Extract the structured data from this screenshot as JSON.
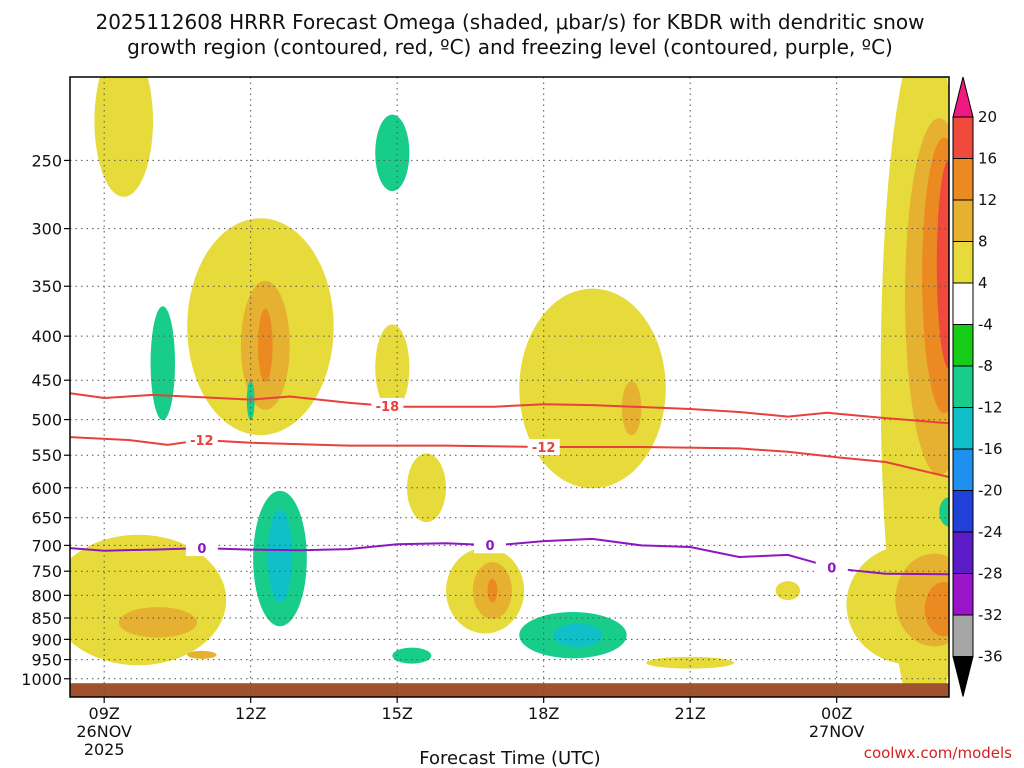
{
  "title_line1": "2025112608 HRRR Forecast Omega (shaded, μbar/s) for KBDR with dendritic snow",
  "title_line2": "growth region (contoured, red, ºC) and freezing level (contoured, purple, ºC)",
  "credit": "coolwx.com/models",
  "colors": {
    "red_contour": "#e8413a",
    "purple_contour": "#8e17c0",
    "ground": "#a0522d",
    "grid": "#555555"
  },
  "chart_data": {
    "type": "heatmap",
    "title": "2025112608 HRRR Forecast Omega (shaded, μbar/s) for KBDR with dendritic snow growth region (contoured, red, ºC) and freezing level (contoured, purple, ºC)",
    "xlabel": "Forecast Time (UTC)",
    "ylabel": "",
    "xlim_hours_from_09Z": [
      -0.7,
      17.3
    ],
    "ylim_hPa": [
      1050,
      200
    ],
    "yticks": [
      {
        "value": 250,
        "label": "250"
      },
      {
        "value": 300,
        "label": "300"
      },
      {
        "value": 350,
        "label": "350"
      },
      {
        "value": 400,
        "label": "400"
      },
      {
        "value": 450,
        "label": "450"
      },
      {
        "value": 500,
        "label": "500"
      },
      {
        "value": 550,
        "label": "550"
      },
      {
        "value": 600,
        "label": "600"
      },
      {
        "value": 650,
        "label": "650"
      },
      {
        "value": 700,
        "label": "700"
      },
      {
        "value": 750,
        "label": "750"
      },
      {
        "value": 800,
        "label": "800"
      },
      {
        "value": 850,
        "label": "850"
      },
      {
        "value": 900,
        "label": "900"
      },
      {
        "value": 950,
        "label": "950"
      },
      {
        "value": 1000,
        "label": "1000"
      }
    ],
    "xticks": [
      {
        "hour": 0,
        "label": "09Z",
        "sub1": "26NOV",
        "sub2": "2025"
      },
      {
        "hour": 3,
        "label": "12Z",
        "sub1": "",
        "sub2": ""
      },
      {
        "hour": 6,
        "label": "15Z",
        "sub1": "",
        "sub2": ""
      },
      {
        "hour": 9,
        "label": "18Z",
        "sub1": "",
        "sub2": ""
      },
      {
        "hour": 12,
        "label": "21Z",
        "sub1": "",
        "sub2": ""
      },
      {
        "hour": 15,
        "label": "00Z",
        "sub1": "27NOV",
        "sub2": ""
      }
    ],
    "colorbar": {
      "levels": [
        -36,
        -32,
        -28,
        -24,
        -20,
        -16,
        -12,
        -8,
        -4,
        4,
        8,
        12,
        16,
        20
      ],
      "bins": [
        {
          "color": "#a5a5a5"
        },
        {
          "color": "#9a14c8"
        },
        {
          "color": "#5b1cc8"
        },
        {
          "color": "#2040d8"
        },
        {
          "color": "#1f8ff0"
        },
        {
          "color": "#10c0c8"
        },
        {
          "color": "#18cc8a"
        },
        {
          "color": "#16cc16"
        },
        {
          "color": "#ffffff"
        },
        {
          "color": "#e6db3a"
        },
        {
          "color": "#e6b030"
        },
        {
          "color": "#ec8a22"
        },
        {
          "color": "#f04a3c"
        }
      ],
      "low_extend_color": "#000000",
      "high_extend_color": "#f0197f"
    },
    "omega_regions": [
      {
        "name": "yellow-upper-left",
        "level": 4,
        "hour": 0.4,
        "p": 225,
        "rh": 0.6,
        "rp": 45
      },
      {
        "name": "yellow-12z-350-500",
        "level": 4,
        "hour": 3.2,
        "p": 390,
        "rh": 1.5,
        "rp": 110
      },
      {
        "name": "orange-13z-400",
        "level": 8,
        "hour": 3.3,
        "p": 410,
        "rh": 0.5,
        "rp": 70
      },
      {
        "name": "darkorange-13z-400",
        "level": 12,
        "hour": 3.3,
        "p": 410,
        "rh": 0.15,
        "rp": 40
      },
      {
        "name": "green-10z-430",
        "level": -8,
        "hour": 1.2,
        "p": 430,
        "rh": 0.25,
        "rp": 65
      },
      {
        "name": "green-12z-480",
        "level": -8,
        "hour": 3.0,
        "p": 475,
        "rh": 0.08,
        "rp": 25
      },
      {
        "name": "green-15z-250",
        "level": -8,
        "hour": 5.9,
        "p": 245,
        "rh": 0.35,
        "rp": 25
      },
      {
        "name": "yellow-15z-440",
        "level": 4,
        "hour": 5.9,
        "p": 435,
        "rh": 0.35,
        "rp": 50
      },
      {
        "name": "yellow-16z-600",
        "level": 4,
        "hour": 6.6,
        "p": 600,
        "rh": 0.4,
        "rp": 55
      },
      {
        "name": "yellow-19z-450",
        "level": 4,
        "hour": 10.0,
        "p": 460,
        "rh": 1.5,
        "rp": 120
      },
      {
        "name": "orange-20z-480",
        "level": 8,
        "hour": 10.8,
        "p": 485,
        "rh": 0.2,
        "rp": 35
      },
      {
        "name": "green-13z-730",
        "level": -8,
        "hour": 3.6,
        "p": 725,
        "rh": 0.55,
        "rp": 130
      },
      {
        "name": "teal-13z-720",
        "level": -12,
        "hour": 3.6,
        "p": 720,
        "rh": 0.25,
        "rp": 90
      },
      {
        "name": "yellow-09z-800",
        "level": 4,
        "hour": 0.7,
        "p": 810,
        "rh": 1.8,
        "rp": 140
      },
      {
        "name": "orange-09z-860",
        "level": 8,
        "hour": 1.1,
        "p": 860,
        "rh": 0.8,
        "rp": 35
      },
      {
        "name": "orange-11z-940",
        "level": 8,
        "hour": 2.0,
        "p": 938,
        "rh": 0.3,
        "rp": 10
      },
      {
        "name": "yellow-17z-790",
        "level": 4,
        "hour": 7.8,
        "p": 790,
        "rh": 0.8,
        "rp": 90
      },
      {
        "name": "orange-17z-800",
        "level": 8,
        "hour": 7.95,
        "p": 790,
        "rh": 0.4,
        "rp": 60
      },
      {
        "name": "darkorange-17z-800",
        "level": 12,
        "hour": 7.95,
        "p": 790,
        "rh": 0.1,
        "rp": 25
      },
      {
        "name": "green-16z-940",
        "level": -8,
        "hour": 6.3,
        "p": 940,
        "rh": 0.4,
        "rp": 20
      },
      {
        "name": "green-19z-890",
        "level": -8,
        "hour": 9.6,
        "p": 890,
        "rh": 1.1,
        "rp": 55
      },
      {
        "name": "teal-19z-890",
        "level": -12,
        "hour": 9.7,
        "p": 890,
        "rh": 0.5,
        "rp": 28
      },
      {
        "name": "yellow-21z-960",
        "level": 4,
        "hour": 12.0,
        "p": 958,
        "rh": 0.9,
        "rp": 15
      },
      {
        "name": "yellow-23z-790",
        "level": 4,
        "hour": 14.0,
        "p": 790,
        "rh": 0.25,
        "rp": 20
      },
      {
        "name": "yellow-01z-right",
        "level": 4,
        "hour": 16.8,
        "p": 450,
        "rh": 0.9,
        "rp": 330
      },
      {
        "name": "orange-01z-right",
        "level": 8,
        "hour": 17.1,
        "p": 360,
        "rh": 0.7,
        "rp": 160
      },
      {
        "name": "darkorange-01z-right",
        "level": 12,
        "hour": 17.2,
        "p": 340,
        "rh": 0.45,
        "rp": 120
      },
      {
        "name": "red-01z-right",
        "level": 16,
        "hour": 17.3,
        "p": 330,
        "rh": 0.25,
        "rp": 90
      },
      {
        "name": "yellow-00z-lower-right",
        "level": 4,
        "hour": 16.5,
        "p": 820,
        "rh": 1.3,
        "rp": 130
      },
      {
        "name": "orange-01z-lower-right",
        "level": 8,
        "hour": 17.0,
        "p": 810,
        "rh": 0.8,
        "rp": 100
      },
      {
        "name": "darkorange-01z-lower-right",
        "level": 12,
        "hour": 17.2,
        "p": 830,
        "rh": 0.4,
        "rp": 60
      },
      {
        "name": "green-right-650",
        "level": -8,
        "hour": 17.3,
        "p": 640,
        "rh": 0.2,
        "rp": 25
      }
    ],
    "contours": [
      {
        "name": "red-contour--18",
        "label": "-18",
        "color": "#e8413a",
        "label_hour": 5.8,
        "points": [
          [
            -0.7,
            466
          ],
          [
            0,
            472
          ],
          [
            1,
            468
          ],
          [
            2,
            471
          ],
          [
            3,
            474
          ],
          [
            3.8,
            470
          ],
          [
            5,
            478
          ],
          [
            6,
            483
          ],
          [
            8,
            483
          ],
          [
            9,
            480
          ],
          [
            10,
            481
          ],
          [
            12,
            486
          ],
          [
            13,
            490
          ],
          [
            14,
            496
          ],
          [
            14.8,
            491
          ],
          [
            16,
            498
          ],
          [
            17.3,
            505
          ]
        ]
      },
      {
        "name": "red-contour--12",
        "label": "-12",
        "color": "#e8413a",
        "label_hour": 2.0,
        "points": [
          [
            -0.7,
            524
          ],
          [
            0.5,
            528
          ],
          [
            1.3,
            535
          ],
          [
            2,
            528
          ],
          [
            3,
            532
          ],
          [
            5,
            536
          ],
          [
            7,
            536
          ],
          [
            9,
            538
          ],
          [
            11,
            538
          ],
          [
            13,
            540
          ],
          [
            14,
            545
          ],
          [
            15,
            553
          ],
          [
            16,
            560
          ],
          [
            17.3,
            583
          ]
        ]
      },
      {
        "name": "red-contour--12-b",
        "label": "-12",
        "color": "#e8413a",
        "label_hour": 9.0,
        "points": []
      },
      {
        "name": "purple-contour-0",
        "label": "0",
        "color": "#8e17c0",
        "label_hour": 2.0,
        "points": [
          [
            -0.7,
            705
          ],
          [
            0,
            710
          ],
          [
            1,
            708
          ],
          [
            2,
            705
          ],
          [
            3,
            708
          ],
          [
            4,
            709
          ],
          [
            5,
            707
          ],
          [
            6,
            698
          ],
          [
            7,
            696
          ],
          [
            8,
            700
          ],
          [
            9,
            692
          ],
          [
            10,
            688
          ],
          [
            11,
            700
          ],
          [
            12,
            703
          ],
          [
            13,
            722
          ],
          [
            14,
            718
          ],
          [
            15,
            745
          ],
          [
            16,
            755
          ],
          [
            17.3,
            756
          ]
        ]
      },
      {
        "name": "purple-contour-0-b",
        "label": "0",
        "color": "#8e17c0",
        "label_hour": 7.9,
        "points": []
      },
      {
        "name": "purple-contour-0-c",
        "label": "0",
        "color": "#8e17c0",
        "label_hour": 14.9,
        "points": []
      }
    ],
    "surface_pressure_hPa": 1012
  }
}
